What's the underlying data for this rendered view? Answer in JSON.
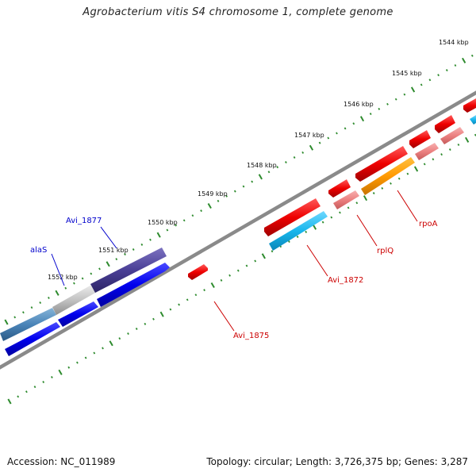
{
  "title": "Agrobacterium vitis S4 chromosome 1, complete genome",
  "footer": {
    "accession": "Accession: NC_011989",
    "summary": "Topology: circular; Length: 3,726,375 bp; Genes: 3,287"
  },
  "scale_labels": [
    "1544 kbp",
    "1545 kbp",
    "1546 kbp",
    "1547 kbp",
    "1548 kbp",
    "1549 kbp",
    "1550 kbp",
    "1551 kbp",
    "1552 kbp"
  ],
  "gene_labels": {
    "avi_1877": "Avi_1877",
    "alas": "alaS",
    "avi_1875": "Avi_1875",
    "avi_1872": "Avi_1872",
    "rplq": "rplQ",
    "rpoa": "rpoA"
  },
  "colors": {
    "backbone": "#8a8a8a",
    "tick": "#2e8b2e",
    "strand_blue": "#0000ee",
    "strand_red": "#ee0000",
    "label_blue": "#0000cc",
    "label_red": "#cc0000"
  }
}
